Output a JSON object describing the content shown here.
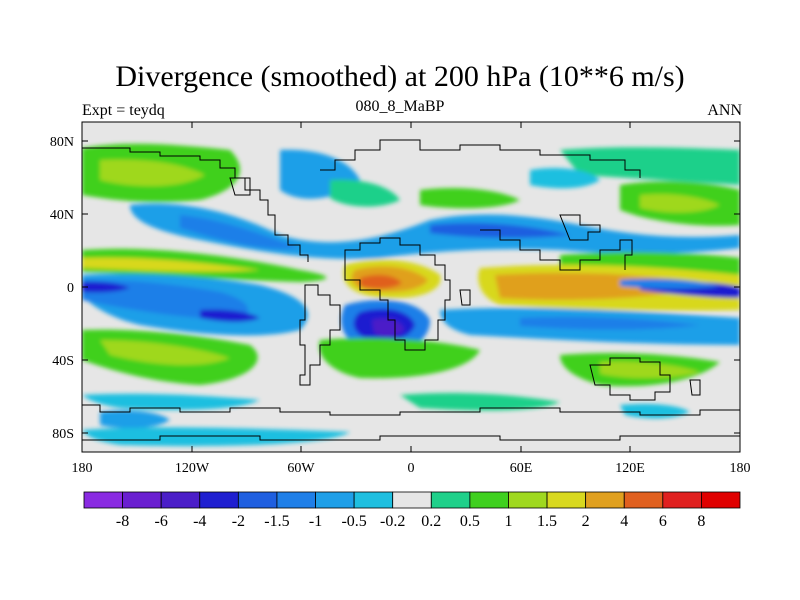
{
  "title": "Divergence (smoothed) at 200 hPa (10**6 m/s)",
  "subtitle_left": "Expt = teydq",
  "subtitle_center": "080_8_MaBP",
  "subtitle_right": "ANN",
  "map": {
    "lat_labels": [
      "80N",
      "40N",
      "0",
      "40S",
      "80S"
    ],
    "lon_labels": [
      "180",
      "120W",
      "60W",
      "0",
      "60E",
      "120E",
      "180"
    ]
  },
  "colorbar": {
    "labels": [
      "-8",
      "-6",
      "-4",
      "-2",
      "-1.5",
      "-1",
      "-0.5",
      "-0.2",
      "0.2",
      "0.5",
      "1",
      "1.5",
      "2",
      "4",
      "6",
      "8"
    ],
    "colors": [
      "#8a2be2",
      "#6a1fd0",
      "#4b1ec8",
      "#1f1fd0",
      "#1f5fe0",
      "#1f7fe8",
      "#1f9fe8",
      "#1fbfe0",
      "#e6e6e6",
      "#1fd08a",
      "#3fd01f",
      "#9fd81f",
      "#d8d81f",
      "#e0a01f",
      "#e0601f",
      "#e0201f",
      "#e00000"
    ]
  }
}
